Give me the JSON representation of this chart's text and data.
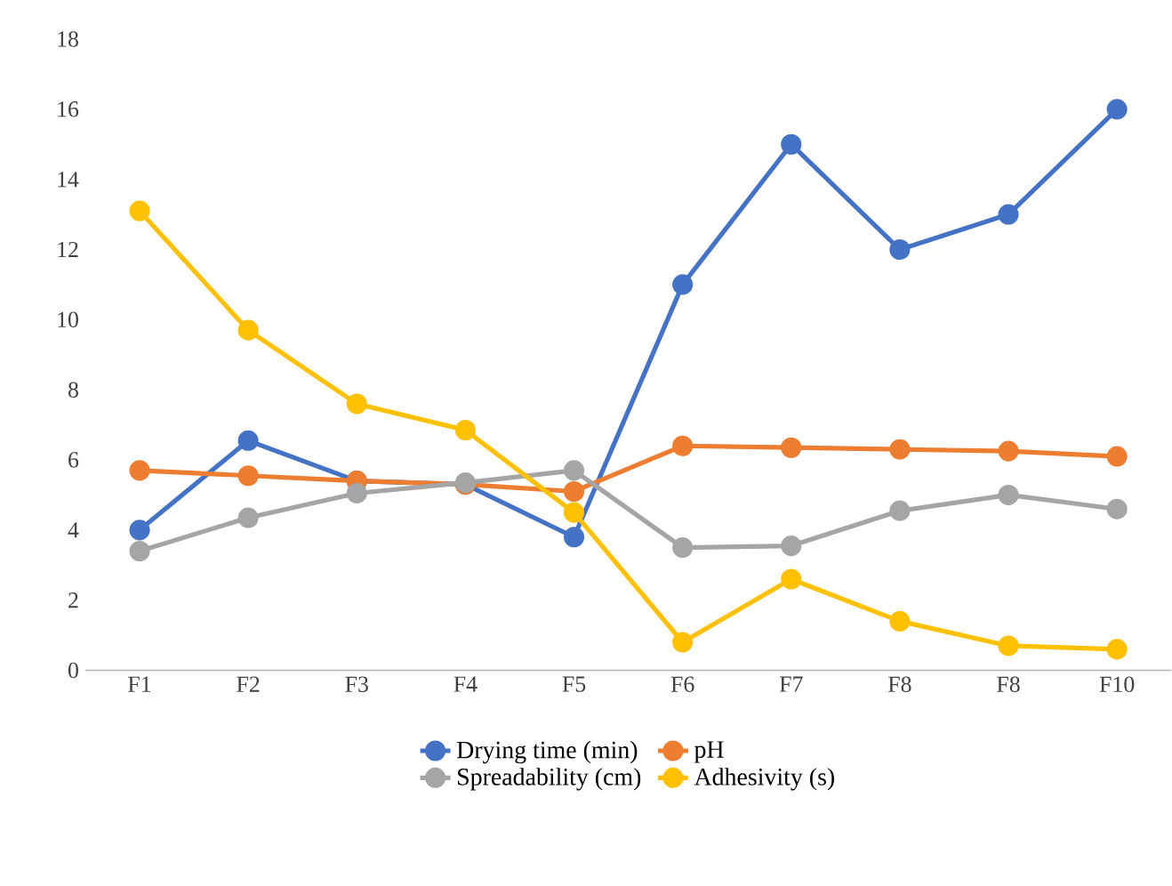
{
  "chart_data": {
    "type": "line",
    "categories": [
      "F1",
      "F2",
      "F3",
      "F4",
      "F5",
      "F6",
      "F7",
      "F8",
      "F8",
      "F10"
    ],
    "series": [
      {
        "name": "Drying time (min)",
        "color": "#4472c4",
        "values": [
          4.0,
          6.55,
          5.4,
          5.3,
          3.8,
          11.0,
          15.0,
          12.0,
          13.0,
          16.0
        ]
      },
      {
        "name": "pH",
        "color": "#ed7d31",
        "values": [
          5.7,
          5.55,
          5.4,
          5.3,
          5.1,
          6.4,
          6.35,
          6.3,
          6.25,
          6.1
        ]
      },
      {
        "name": "Spreadability (cm)",
        "color": "#a5a5a5",
        "values": [
          3.4,
          4.35,
          5.05,
          5.35,
          5.7,
          3.5,
          3.55,
          4.55,
          5.0,
          4.6
        ]
      },
      {
        "name": "Adhesivity (s)",
        "color": "#ffc000",
        "values": [
          13.1,
          9.7,
          7.6,
          6.85,
          4.5,
          0.8,
          2.6,
          1.4,
          0.7,
          0.6
        ]
      }
    ],
    "ylim": [
      0,
      18
    ],
    "yticks": [
      0,
      2,
      4,
      6,
      8,
      10,
      12,
      14,
      16,
      18
    ],
    "legend": "bottom",
    "marker": "circle",
    "line_style": "solid"
  }
}
